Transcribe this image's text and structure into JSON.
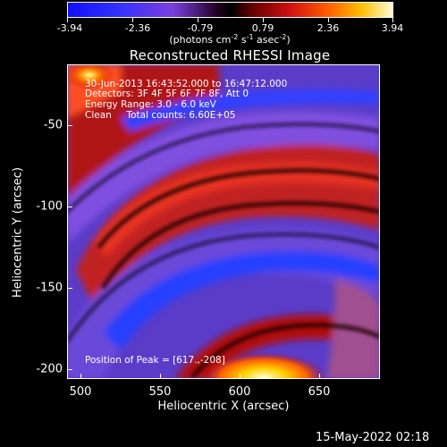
{
  "colorbar": {
    "tick_labels": [
      "-3.94",
      "-2.36",
      "-0.79",
      "0.79",
      "2.36",
      "3.94"
    ],
    "units": {
      "prefix": "(photons cm",
      "exp1": "-2",
      "mid1": " s",
      "exp2": "-1",
      "mid2": " asec",
      "exp3": "-2",
      "suffix": ")"
    }
  },
  "chart_data": {
    "type": "heatmap",
    "title": "Reconstructed RHESSI Image",
    "xlabel": "Heliocentric X (arcsec)",
    "ylabel": "Heliocentric Y (arcsec)",
    "x_ticks": [
      "500",
      "550",
      "600",
      "650"
    ],
    "y_ticks": [
      "-50",
      "-100",
      "-150",
      "-200"
    ],
    "xlim": [
      497,
      686
    ],
    "ylim": [
      -207,
      -18
    ],
    "value_range": [
      -3.94,
      3.94
    ],
    "colormap": "blue-purple-black-red-yellow-white",
    "peak": {
      "x": 617,
      "y": -208
    }
  },
  "info": {
    "time": "30-Jun-2013 16:43:52.000 to 16:47:12.000",
    "detectors": "Detectors: 3F 4F 5F 6F 7F 8F, Att 0",
    "energy": "Energy Range: 3.0 - 6.0 keV",
    "clean": "Clean     Total counts: 6.60E+05",
    "peak": "Position of Peak = [617.,-208]"
  },
  "footer": {
    "timestamp": "15-May-2022 02:18"
  }
}
